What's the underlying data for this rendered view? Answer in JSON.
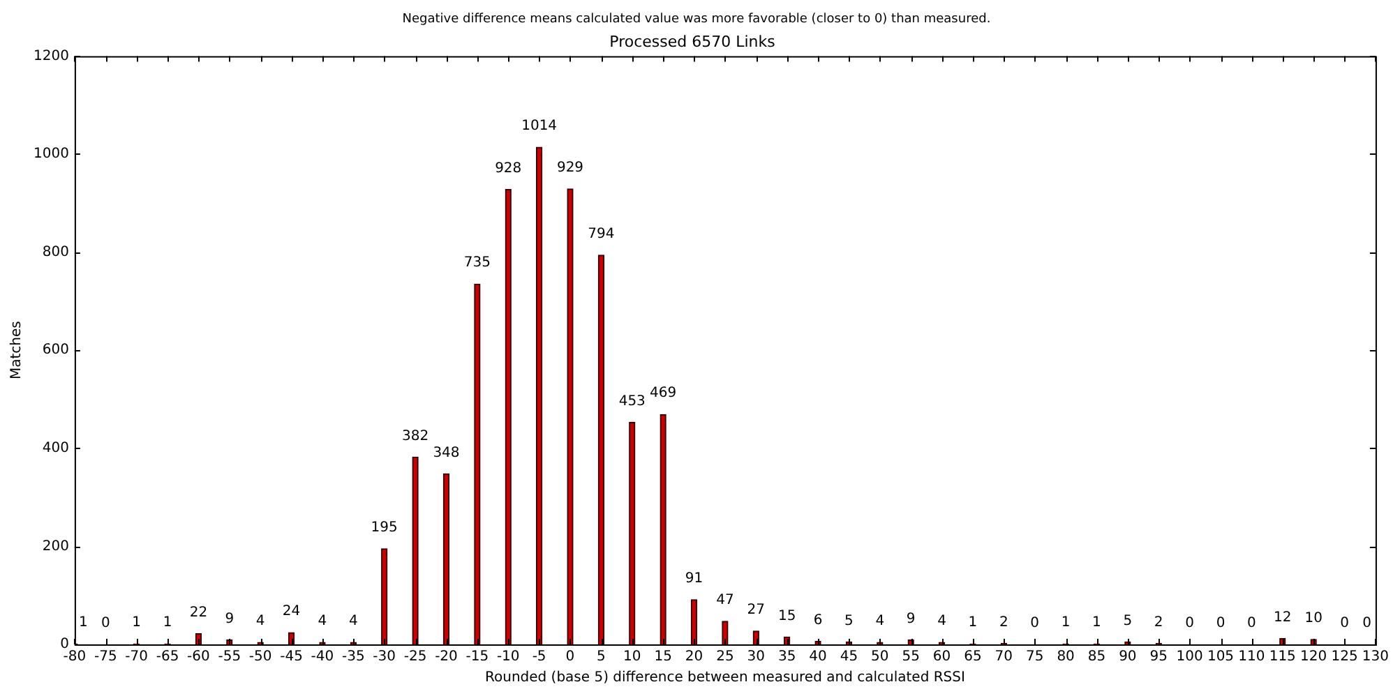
{
  "chart_data": {
    "type": "bar",
    "title": "Processed 6570 Links",
    "annotations": [
      "Negative difference means calculated value was more favorable (closer to 0) than measured."
    ],
    "xlabel": "Rounded (base 5) difference between measured and calculated RSSI",
    "ylabel": "Matches",
    "x": [
      -80,
      -75,
      -70,
      -65,
      -60,
      -55,
      -50,
      -45,
      -40,
      -35,
      -30,
      -25,
      -20,
      -15,
      -10,
      -5,
      0,
      5,
      10,
      15,
      20,
      25,
      30,
      35,
      40,
      45,
      50,
      55,
      60,
      65,
      70,
      75,
      80,
      85,
      90,
      95,
      100,
      105,
      110,
      115,
      120,
      125,
      130
    ],
    "values": [
      1,
      0,
      1,
      1,
      22,
      9,
      4,
      24,
      4,
      4,
      195,
      382,
      348,
      735,
      928,
      1014,
      929,
      794,
      453,
      469,
      91,
      47,
      27,
      15,
      6,
      5,
      4,
      9,
      4,
      1,
      2,
      0,
      1,
      1,
      5,
      2,
      0,
      0,
      0,
      12,
      10,
      0,
      0
    ],
    "color": "#cc0000",
    "data_labels": true,
    "grid": false,
    "legend": false,
    "xlim": [
      -80,
      130
    ],
    "xticks": [
      -80,
      -75,
      -70,
      -65,
      -60,
      -55,
      -50,
      -45,
      -40,
      -35,
      -30,
      -25,
      -20,
      -15,
      -10,
      -5,
      0,
      5,
      10,
      15,
      20,
      25,
      30,
      35,
      40,
      45,
      50,
      55,
      60,
      65,
      70,
      75,
      80,
      85,
      90,
      95,
      100,
      105,
      110,
      115,
      120,
      125,
      130
    ],
    "ylim": [
      0,
      1200
    ],
    "yticks": [
      0,
      200,
      400,
      600,
      800,
      1000,
      1200
    ]
  }
}
